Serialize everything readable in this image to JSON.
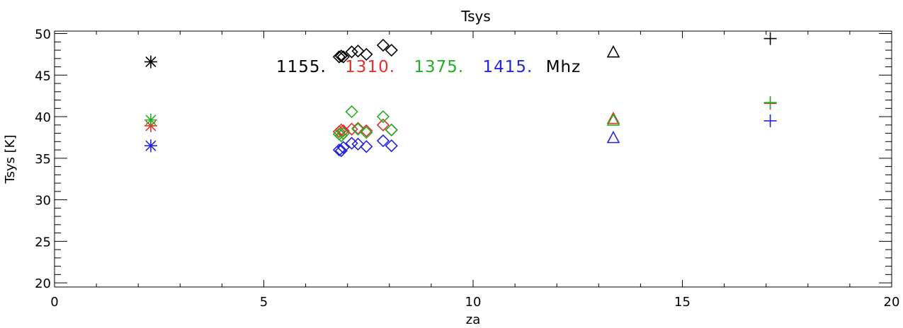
{
  "chart_data": {
    "type": "scatter",
    "title": "Tsys",
    "xlabel": "za",
    "ylabel": "Tsys [K]",
    "xlim": [
      0,
      20
    ],
    "ylim": [
      19.5,
      50.3
    ],
    "x_ticks": [
      0,
      5,
      10,
      15,
      20
    ],
    "y_ticks": [
      20,
      25,
      30,
      35,
      40,
      45,
      50
    ],
    "grid": false,
    "legend": {
      "placement": "top-center",
      "entries": [
        {
          "text": "1155.",
          "color": "#000000"
        },
        {
          "text": "1310.",
          "color": "#e8302b"
        },
        {
          "text": "1375.",
          "color": "#22b022"
        },
        {
          "text": "1415.",
          "color": "#2424e0"
        }
      ],
      "unit": "Mhz"
    },
    "series": [
      {
        "color": "#000000",
        "points": [
          {
            "x": 2.3,
            "y": 46.6,
            "marker": "asterisk"
          },
          {
            "x": 6.8,
            "y": 47.2,
            "marker": "diamond"
          },
          {
            "x": 6.85,
            "y": 47.3,
            "marker": "diamond"
          },
          {
            "x": 6.9,
            "y": 47.2,
            "marker": "diamond"
          },
          {
            "x": 7.1,
            "y": 47.8,
            "marker": "diamond"
          },
          {
            "x": 7.25,
            "y": 47.9,
            "marker": "diamond"
          },
          {
            "x": 7.45,
            "y": 47.5,
            "marker": "diamond"
          },
          {
            "x": 7.85,
            "y": 48.6,
            "marker": "diamond"
          },
          {
            "x": 8.05,
            "y": 48.0,
            "marker": "diamond"
          },
          {
            "x": 13.35,
            "y": 47.7,
            "marker": "triangle"
          },
          {
            "x": 17.1,
            "y": 49.4,
            "marker": "plus"
          }
        ]
      },
      {
        "color": "#e8302b",
        "points": [
          {
            "x": 2.3,
            "y": 38.9,
            "marker": "asterisk"
          },
          {
            "x": 6.8,
            "y": 38.2,
            "marker": "diamond"
          },
          {
            "x": 6.85,
            "y": 38.4,
            "marker": "diamond"
          },
          {
            "x": 6.9,
            "y": 38.3,
            "marker": "diamond"
          },
          {
            "x": 7.1,
            "y": 38.5,
            "marker": "diamond"
          },
          {
            "x": 7.25,
            "y": 38.6,
            "marker": "diamond"
          },
          {
            "x": 7.45,
            "y": 38.3,
            "marker": "diamond"
          },
          {
            "x": 7.85,
            "y": 39.0,
            "marker": "diamond"
          },
          {
            "x": 8.05,
            "y": 38.4,
            "marker": "diamond"
          },
          {
            "x": 13.35,
            "y": 39.7,
            "marker": "triangle"
          },
          {
            "x": 17.1,
            "y": 41.6,
            "marker": "plus"
          }
        ]
      },
      {
        "color": "#22b022",
        "points": [
          {
            "x": 2.3,
            "y": 39.6,
            "marker": "asterisk"
          },
          {
            "x": 6.8,
            "y": 37.9,
            "marker": "diamond"
          },
          {
            "x": 6.85,
            "y": 37.7,
            "marker": "diamond"
          },
          {
            "x": 6.9,
            "y": 38.0,
            "marker": "diamond"
          },
          {
            "x": 7.1,
            "y": 40.6,
            "marker": "diamond"
          },
          {
            "x": 7.25,
            "y": 38.5,
            "marker": "diamond"
          },
          {
            "x": 7.45,
            "y": 38.1,
            "marker": "diamond"
          },
          {
            "x": 7.85,
            "y": 40.0,
            "marker": "diamond"
          },
          {
            "x": 8.05,
            "y": 38.4,
            "marker": "diamond"
          },
          {
            "x": 13.35,
            "y": 39.5,
            "marker": "triangle"
          },
          {
            "x": 17.1,
            "y": 41.7,
            "marker": "plus"
          }
        ]
      },
      {
        "color": "#2424e0",
        "points": [
          {
            "x": 2.3,
            "y": 36.5,
            "marker": "asterisk"
          },
          {
            "x": 6.8,
            "y": 36.0,
            "marker": "diamond"
          },
          {
            "x": 6.85,
            "y": 35.9,
            "marker": "diamond"
          },
          {
            "x": 6.9,
            "y": 36.3,
            "marker": "diamond"
          },
          {
            "x": 7.1,
            "y": 36.8,
            "marker": "diamond"
          },
          {
            "x": 7.25,
            "y": 36.7,
            "marker": "diamond"
          },
          {
            "x": 7.45,
            "y": 36.4,
            "marker": "diamond"
          },
          {
            "x": 7.85,
            "y": 37.1,
            "marker": "diamond"
          },
          {
            "x": 8.05,
            "y": 36.5,
            "marker": "diamond"
          },
          {
            "x": 13.35,
            "y": 37.4,
            "marker": "triangle"
          },
          {
            "x": 17.1,
            "y": 39.5,
            "marker": "plus"
          }
        ]
      }
    ]
  }
}
